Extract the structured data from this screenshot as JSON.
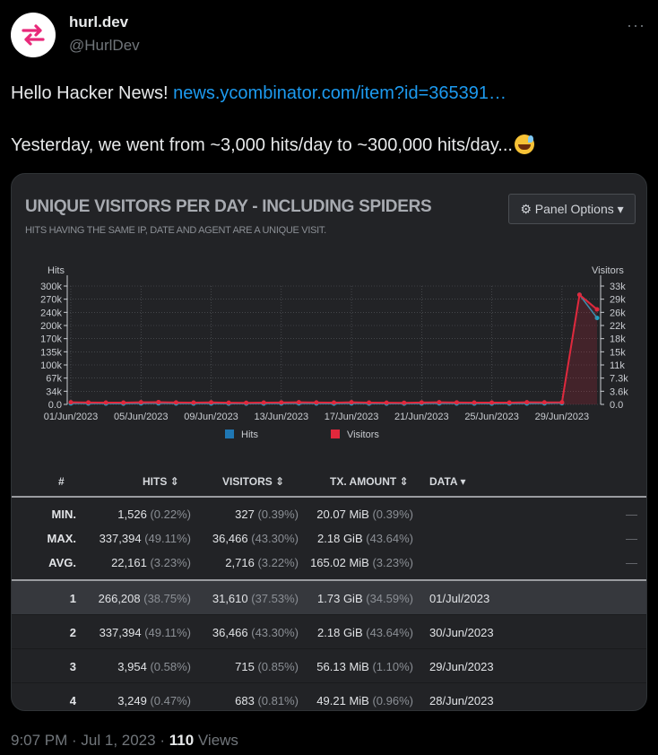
{
  "tweet": {
    "name": "hurl.dev",
    "handle": "@HurlDev",
    "more_icon": "more-dots-icon",
    "line1_text": "Hello Hacker News!",
    "line1_link": "news.ycombinator.com/item?id=365391…",
    "line2_text": "Yesterday, we went from ~3,000 hits/day to ~300,000 hits/day...",
    "emoji": "grinning-sweat-emoji",
    "time": "9:07 PM",
    "date": "Jul 1, 2023",
    "views_count": "110",
    "views_label": "Views"
  },
  "panel": {
    "title": "UNIQUE VISITORS PER DAY - INCLUDING SPIDERS",
    "subtitle": "HITS HAVING THE SAME IP, DATE AND AGENT ARE A UNIQUE VISIT.",
    "options_label": "Panel Options",
    "options_icon": "gear-icon",
    "colors": {
      "hits": "#1f77b4",
      "visitors": "#e0283c",
      "background": "#222326"
    }
  },
  "chart_data": {
    "type": "line",
    "ylabel": "Hits",
    "y2label": "Visitors",
    "y_ticks": [
      "0.0",
      "34k",
      "67k",
      "100k",
      "135k",
      "170k",
      "200k",
      "240k",
      "270k",
      "300k"
    ],
    "y2_ticks": [
      "0.0",
      "3.6k",
      "7.3k",
      "11k",
      "15k",
      "18k",
      "22k",
      "26k",
      "29k",
      "33k"
    ],
    "x_ticks": [
      "01/Jun/2023",
      "05/Jun/2023",
      "09/Jun/2023",
      "13/Jun/2023",
      "17/Jun/2023",
      "21/Jun/2023",
      "25/Jun/2023",
      "29/Jun/2023"
    ],
    "x": [
      "01/Jun",
      "02/Jun",
      "03/Jun",
      "04/Jun",
      "05/Jun",
      "06/Jun",
      "07/Jun",
      "08/Jun",
      "09/Jun",
      "10/Jun",
      "11/Jun",
      "12/Jun",
      "13/Jun",
      "14/Jun",
      "15/Jun",
      "16/Jun",
      "17/Jun",
      "18/Jun",
      "19/Jun",
      "20/Jun",
      "21/Jun",
      "22/Jun",
      "23/Jun",
      "24/Jun",
      "25/Jun",
      "26/Jun",
      "27/Jun",
      "28/Jun",
      "29/Jun",
      "30/Jun",
      "01/Jul"
    ],
    "series": [
      {
        "name": "Hits",
        "axis": "left",
        "values": [
          3000,
          2800,
          2600,
          2500,
          3100,
          3300,
          2700,
          2600,
          2900,
          2400,
          2300,
          2600,
          2800,
          3100,
          2700,
          2500,
          3000,
          2600,
          2400,
          2300,
          2700,
          3000,
          2800,
          2600,
          2500,
          2600,
          2900,
          3249,
          3954,
          337394,
          266208
        ]
      },
      {
        "name": "Visitors",
        "axis": "right",
        "values": [
          700,
          650,
          600,
          580,
          720,
          760,
          630,
          610,
          680,
          560,
          540,
          600,
          650,
          720,
          630,
          590,
          700,
          610,
          560,
          540,
          630,
          700,
          650,
          610,
          590,
          610,
          690,
          683,
          715,
          36466,
          31610
        ]
      }
    ],
    "legend": [
      "Hits",
      "Visitors"
    ],
    "legend_position": "bottom",
    "ylim": [
      0,
      337394
    ],
    "y2lim": [
      0,
      36466
    ],
    "grid": true
  },
  "table": {
    "headers": [
      "#",
      "HITS",
      "VISITORS",
      "TX. AMOUNT",
      "DATA"
    ],
    "summary": [
      {
        "label": "MIN.",
        "hits": "1,526",
        "hits_pct": "(0.22%)",
        "visitors": "327",
        "visitors_pct": "(0.39%)",
        "tx": "20.07 MiB",
        "tx_pct": "(0.39%)",
        "data": "—"
      },
      {
        "label": "MAX.",
        "hits": "337,394",
        "hits_pct": "(49.11%)",
        "visitors": "36,466",
        "visitors_pct": "(43.30%)",
        "tx": "2.18 GiB",
        "tx_pct": "(43.64%)",
        "data": "—"
      },
      {
        "label": "AVG.",
        "hits": "22,161",
        "hits_pct": "(3.23%)",
        "visitors": "2,716",
        "visitors_pct": "(3.22%)",
        "tx": "165.02 MiB",
        "tx_pct": "(3.23%)",
        "data": "—"
      }
    ],
    "rows": [
      {
        "n": "1",
        "hits": "266,208",
        "hits_pct": "(38.75%)",
        "visitors": "31,610",
        "visitors_pct": "(37.53%)",
        "tx": "1.73 GiB",
        "tx_pct": "(34.59%)",
        "data": "01/Jul/2023"
      },
      {
        "n": "2",
        "hits": "337,394",
        "hits_pct": "(49.11%)",
        "visitors": "36,466",
        "visitors_pct": "(43.30%)",
        "tx": "2.18 GiB",
        "tx_pct": "(43.64%)",
        "data": "30/Jun/2023"
      },
      {
        "n": "3",
        "hits": "3,954",
        "hits_pct": "(0.58%)",
        "visitors": "715",
        "visitors_pct": "(0.85%)",
        "tx": "56.13 MiB",
        "tx_pct": "(1.10%)",
        "data": "29/Jun/2023"
      },
      {
        "n": "4",
        "hits": "3,249",
        "hits_pct": "(0.47%)",
        "visitors": "683",
        "visitors_pct": "(0.81%)",
        "tx": "49.21 MiB",
        "tx_pct": "(0.96%)",
        "data": "28/Jun/2023"
      }
    ]
  }
}
